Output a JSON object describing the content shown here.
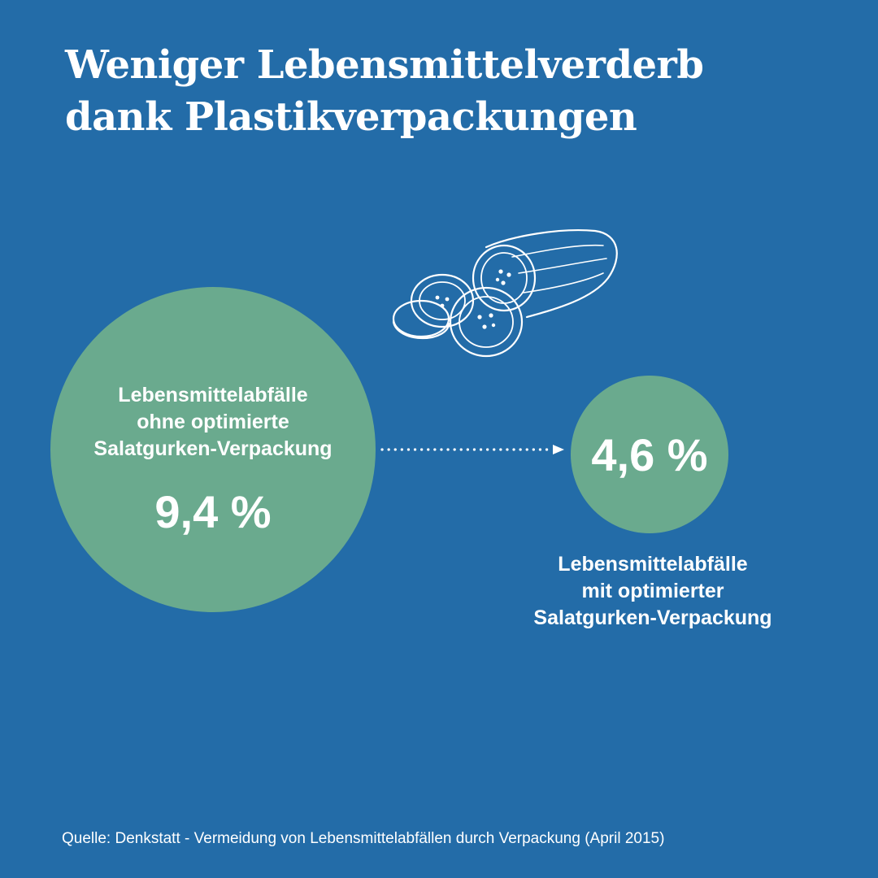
{
  "title": {
    "line1": "Weniger Lebensmittelverderb",
    "line2": "dank Plastikverpackungen"
  },
  "colors": {
    "background": "#236ca8",
    "circle": "#6aaa8e",
    "text": "#ffffff"
  },
  "chart_data": {
    "type": "bubble",
    "title": "Weniger Lebensmittelverderb dank Plastikverpackungen",
    "unit": "%",
    "items": [
      {
        "label_lines": [
          "Lebensmittelabfälle",
          "ohne optimierte",
          "Salatgurken-Verpackung"
        ],
        "value": 9.4,
        "display": "9,4 %"
      },
      {
        "label_lines": [
          "Lebensmittelabfälle",
          "mit optimierter",
          "Salatgurken-Verpackung"
        ],
        "value": 4.6,
        "display": "4,6 %"
      }
    ]
  },
  "illustration": {
    "icon": "cucumber-slices-icon"
  },
  "source": "Quelle: Denkstatt - Vermeidung von Lebensmittelabfällen durch Verpackung (April 2015)"
}
